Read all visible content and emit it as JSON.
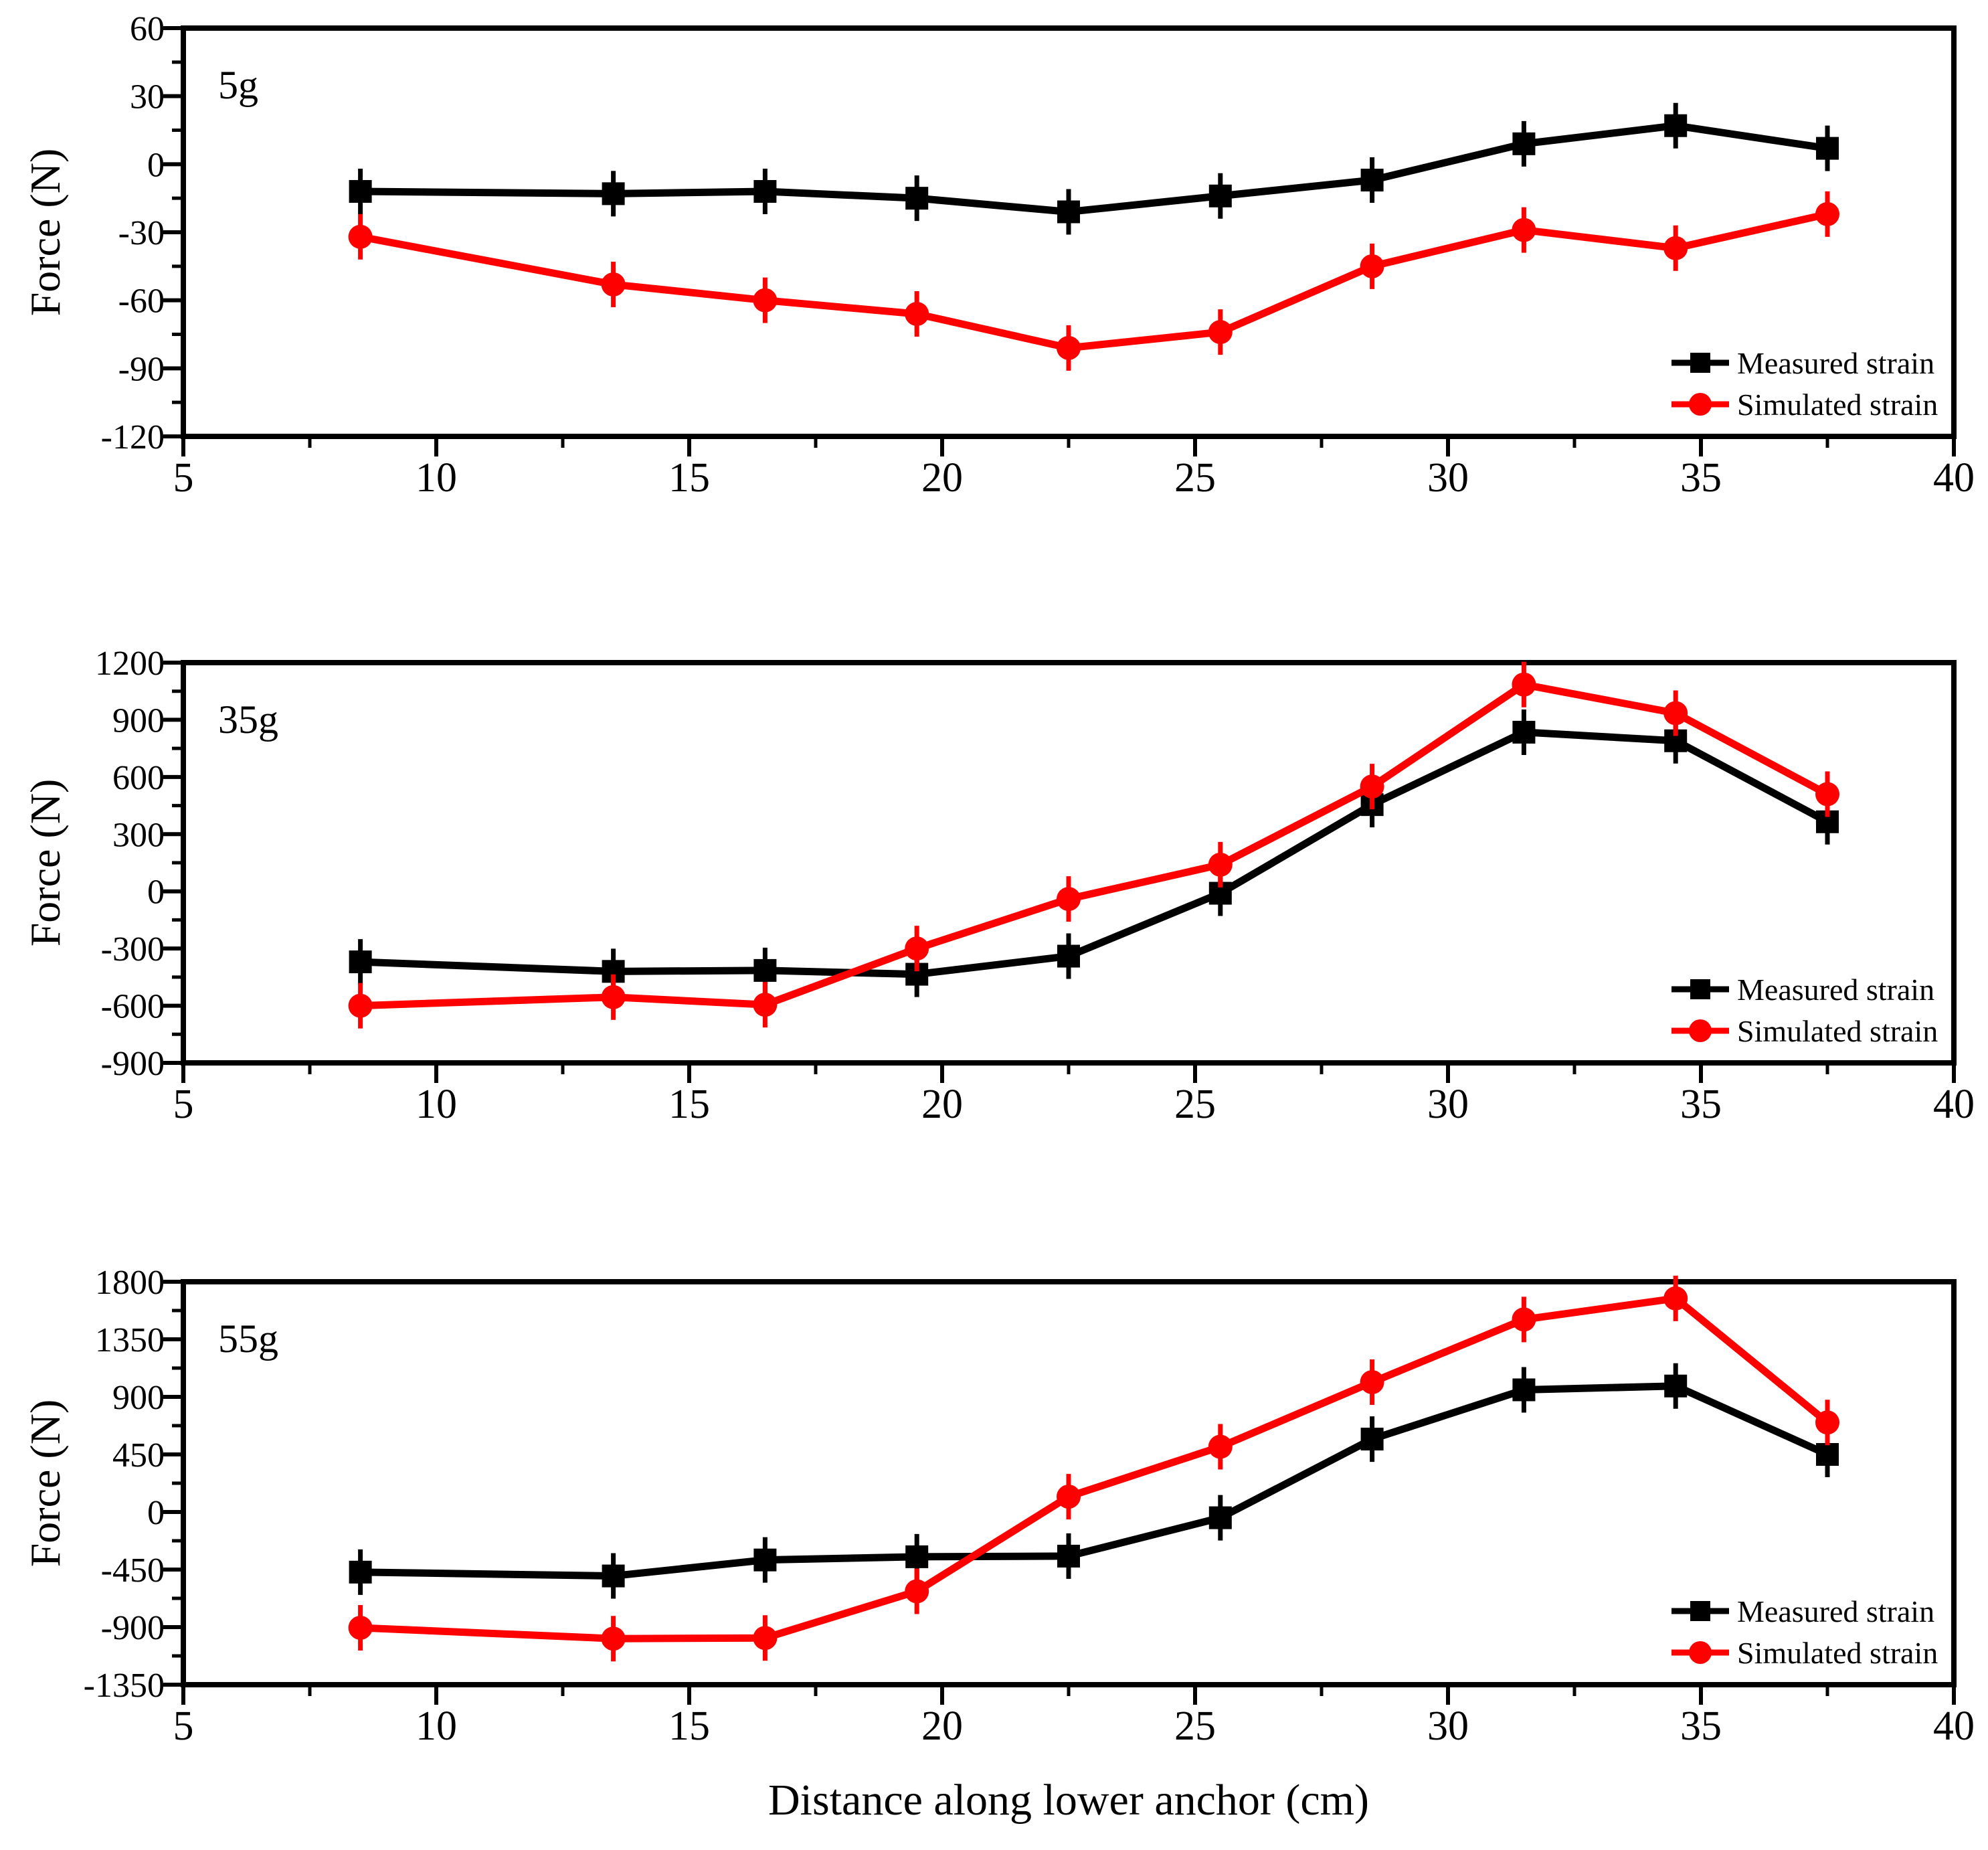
{
  "figure": {
    "xlabel": "Distance along lower anchor (cm)",
    "background_color": "#ffffff",
    "text_color": "#000000",
    "axis_color": "#000000"
  },
  "legend": {
    "items": [
      {
        "label": "Measured strain",
        "color": "#000000",
        "marker": "square"
      },
      {
        "label": "Simulated strain",
        "color": "#ff0000",
        "marker": "circle"
      }
    ],
    "position": "bottom-right"
  },
  "chart_data": [
    {
      "type": "line",
      "panel_label": "5g",
      "ylabel": "Force (N)",
      "xlabel": "Distance along lower anchor (cm)",
      "x": [
        8.5,
        13.5,
        16.5,
        19.5,
        22.5,
        25.5,
        28.5,
        31.5,
        34.5,
        37.5
      ],
      "series": [
        {
          "name": "Measured strain",
          "color": "#000000",
          "marker": "square",
          "values": [
            -12,
            -13,
            -12,
            -15,
            -21,
            -14,
            -7,
            9,
            17,
            7
          ]
        },
        {
          "name": "Simulated strain",
          "color": "#ff0000",
          "marker": "circle",
          "values": [
            -32,
            -53,
            -60,
            -66,
            -81,
            -74,
            -45,
            -29,
            -37,
            -22
          ]
        }
      ],
      "xlim": [
        5,
        40
      ],
      "ylim": [
        -120,
        60
      ],
      "xticks": [
        5,
        10,
        15,
        20,
        25,
        30,
        35,
        40
      ],
      "yticks": [
        60,
        30,
        0,
        -30,
        -60,
        -90,
        -120
      ],
      "grid": false,
      "legend_position": "bottom-right"
    },
    {
      "type": "line",
      "panel_label": "35g",
      "ylabel": "Force (N)",
      "xlabel": "Distance along lower anchor (cm)",
      "x": [
        8.5,
        13.5,
        16.5,
        19.5,
        22.5,
        25.5,
        28.5,
        31.5,
        34.5,
        37.5
      ],
      "series": [
        {
          "name": "Measured strain",
          "color": "#000000",
          "marker": "square",
          "values": [
            -370,
            -420,
            -415,
            -435,
            -340,
            -10,
            455,
            835,
            790,
            365
          ]
        },
        {
          "name": "Simulated strain",
          "color": "#ff0000",
          "marker": "circle",
          "values": [
            -600,
            -555,
            -595,
            -300,
            -40,
            140,
            550,
            1085,
            935,
            510
          ]
        }
      ],
      "xlim": [
        5,
        40
      ],
      "ylim": [
        -900,
        1200
      ],
      "xticks": [
        5,
        10,
        15,
        20,
        25,
        30,
        35,
        40
      ],
      "yticks": [
        1200,
        900,
        600,
        300,
        0,
        -300,
        -600,
        -900
      ],
      "grid": false,
      "legend_position": "bottom-right"
    },
    {
      "type": "line",
      "panel_label": "55g",
      "ylabel": "Force (N)",
      "xlabel": "Distance along lower anchor (cm)",
      "x": [
        8.5,
        13.5,
        16.5,
        19.5,
        22.5,
        25.5,
        28.5,
        31.5,
        34.5,
        37.5
      ],
      "series": [
        {
          "name": "Measured strain",
          "color": "#000000",
          "marker": "square",
          "values": [
            -470,
            -500,
            -375,
            -350,
            -345,
            -45,
            570,
            955,
            985,
            450
          ]
        },
        {
          "name": "Simulated strain",
          "color": "#ff0000",
          "marker": "circle",
          "values": [
            -905,
            -990,
            -985,
            -620,
            120,
            510,
            1015,
            1505,
            1670,
            700
          ]
        }
      ],
      "xlim": [
        5,
        40
      ],
      "ylim": [
        -1350,
        1800
      ],
      "xticks": [
        5,
        10,
        15,
        20,
        25,
        30,
        35,
        40
      ],
      "yticks": [
        1800,
        1350,
        900,
        450,
        0,
        -450,
        -900,
        -1350
      ],
      "grid": false,
      "legend_position": "bottom-right"
    }
  ]
}
